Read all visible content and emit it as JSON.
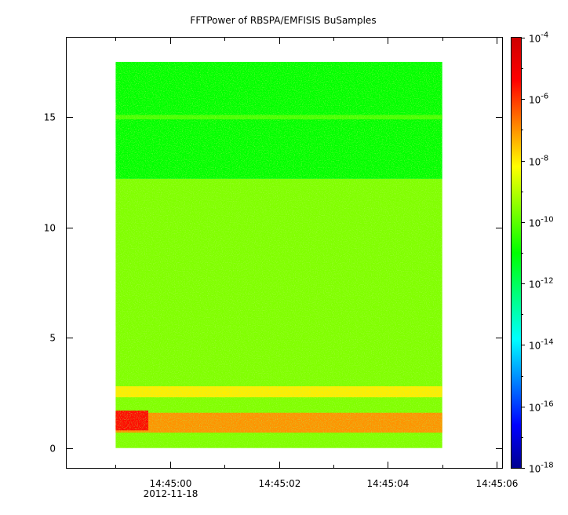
{
  "chart_data": {
    "type": "heatmap",
    "title": "FFTPower of RBSPA/EMFISIS  BuSamples",
    "xlabel": "",
    "ylabel": "",
    "x_ticks": [
      {
        "value": 0,
        "label": "14:45:00",
        "sublabel": "2012-11-18"
      },
      {
        "value": 2,
        "label": "14:45:02",
        "sublabel": ""
      },
      {
        "value": 4,
        "label": "14:45:04",
        "sublabel": ""
      },
      {
        "value": 6,
        "label": "14:45:06",
        "sublabel": ""
      }
    ],
    "x_minor_ticks": [
      -1,
      1,
      3,
      5
    ],
    "xlim": [
      -1.9,
      6.1
    ],
    "data_xrange": [
      -1.0,
      5.0
    ],
    "y_ticks": [
      0,
      5,
      10,
      15
    ],
    "ylim": [
      -0.9,
      18.6
    ],
    "data_yrange": [
      0,
      17.5
    ],
    "colorbar": {
      "scale": "log",
      "range": [
        1e-18,
        0.0001
      ],
      "tick_exponents": [
        -4,
        -6,
        -8,
        -10,
        -12,
        -14,
        -16,
        -18
      ],
      "tick_base": "10",
      "colormap": [
        "#00008f",
        "#0000ff",
        "#0080ff",
        "#00ffff",
        "#00ff80",
        "#00ff00",
        "#80ff00",
        "#ffff00",
        "#ff8000",
        "#ff0000",
        "#cc0000"
      ]
    },
    "features": [
      {
        "label": "",
        "y_range": [
          0,
          12.2
        ],
        "log_power": -9.6
      },
      {
        "label": "",
        "y_range": [
          12.2,
          17.5
        ],
        "log_power": -11.0
      },
      {
        "label": "",
        "y_range": [
          14.9,
          15.1
        ],
        "log_power": -10.2
      },
      {
        "label": "",
        "y_range": [
          2.3,
          2.8
        ],
        "log_power": -8.0
      },
      {
        "label": "",
        "y_range": [
          0.7,
          1.6
        ],
        "log_power": -7.0
      },
      {
        "label": "",
        "x_range": [
          -1.0,
          -0.4
        ],
        "y_range": [
          0.8,
          1.7
        ],
        "log_power": -5.5
      }
    ],
    "grid": false
  }
}
